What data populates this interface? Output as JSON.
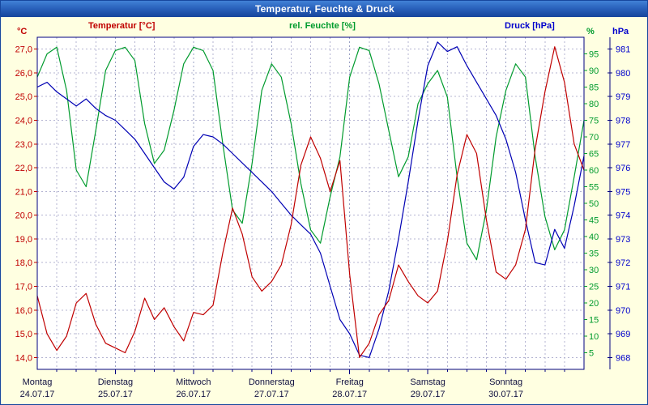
{
  "window": {
    "title": "Temperatur, Feuchte & Druck"
  },
  "legend": {
    "temperature": "Temperatur [°C]",
    "humidity": "rel. Feuchte [%]",
    "pressure": "Druck [hPa]"
  },
  "axes": {
    "temp_unit": "°C",
    "hum_unit": "%",
    "pres_unit": "hPa"
  },
  "colors": {
    "temperature": "#c00000",
    "humidity": "#009b2d",
    "pressure": "#0000b4",
    "pressure_label": "#0000cc",
    "grid": "#b4b4d2",
    "axis": "#000080",
    "day_label": "#101040",
    "background": "#ffffe1",
    "plot_background": "#ffffff"
  },
  "chart_data": {
    "type": "line",
    "title": "Temperatur, Feuchte & Druck",
    "x_unit": "hours",
    "x_start_hours": 0,
    "x_end_hours": 168,
    "x_step_hours": 3,
    "grid": {
      "v_step_hours": 6,
      "h_lines": "temperature-ticks",
      "style": "dashed"
    },
    "x_days": [
      {
        "name": "Montag",
        "date": "24.07.17"
      },
      {
        "name": "Dienstag",
        "date": "25.07.17"
      },
      {
        "name": "Mittwoch",
        "date": "26.07.17"
      },
      {
        "name": "Donnerstag",
        "date": "27.07.17"
      },
      {
        "name": "Freitag",
        "date": "28.07.17"
      },
      {
        "name": "Samstag",
        "date": "29.07.17"
      },
      {
        "name": "Sonntag",
        "date": "30.07.17"
      }
    ],
    "series": [
      {
        "name": "Temperatur",
        "unit": "°C",
        "color": "#c00000",
        "axis": {
          "side": "left",
          "min": 13.5,
          "max": 27.5,
          "tick_from": 14,
          "tick_to": 27,
          "tick_step": 1,
          "decimals": 1
        },
        "values": [
          16.6,
          15.0,
          14.3,
          14.9,
          16.3,
          16.7,
          15.4,
          14.6,
          14.4,
          14.2,
          15.1,
          16.5,
          15.6,
          16.1,
          15.3,
          14.7,
          15.9,
          15.8,
          16.2,
          18.4,
          20.3,
          19.2,
          17.4,
          16.8,
          17.2,
          17.9,
          19.6,
          22.1,
          23.3,
          22.4,
          21.0,
          22.3,
          17.5,
          14.0,
          14.6,
          15.8,
          16.4,
          17.9,
          17.2,
          16.6,
          16.3,
          16.8,
          18.9,
          21.7,
          23.4,
          22.6,
          19.8,
          17.6,
          17.3,
          17.9,
          19.4,
          22.8,
          25.2,
          27.1,
          25.6,
          23.0,
          21.9
        ]
      },
      {
        "name": "rel. Feuchte",
        "unit": "%",
        "color": "#009b2d",
        "axis": {
          "side": "right-inner",
          "min": 0,
          "max": 100,
          "tick_from": 5,
          "tick_to": 95,
          "tick_step": 5,
          "decimals": 0
        },
        "values": [
          88,
          95,
          97,
          84,
          60,
          55,
          72,
          90,
          96,
          97,
          93,
          74,
          62,
          66,
          78,
          92,
          97,
          96,
          90,
          68,
          48,
          44,
          62,
          84,
          92,
          88,
          74,
          56,
          42,
          38,
          52,
          64,
          88,
          97,
          96,
          86,
          72,
          58,
          64,
          80,
          86,
          90,
          82,
          58,
          38,
          33,
          48,
          70,
          84,
          92,
          88,
          64,
          46,
          36,
          42,
          58,
          75
        ]
      },
      {
        "name": "Druck",
        "unit": "hPa",
        "color": "#0000b4",
        "axis": {
          "side": "right-outer",
          "min": 967.5,
          "max": 981.5,
          "tick_from": 968,
          "tick_to": 981,
          "tick_step": 1,
          "decimals": 0
        },
        "values": [
          979.4,
          979.6,
          979.2,
          978.9,
          978.6,
          978.9,
          978.5,
          978.2,
          978.0,
          977.6,
          977.2,
          976.6,
          976.0,
          975.4,
          975.1,
          975.6,
          976.9,
          977.4,
          977.3,
          977.0,
          976.6,
          976.2,
          975.8,
          975.4,
          975.0,
          974.5,
          974.0,
          973.6,
          973.2,
          972.4,
          971.0,
          969.6,
          969.0,
          968.1,
          968.0,
          969.2,
          970.8,
          973.0,
          975.4,
          978.0,
          980.3,
          981.3,
          980.9,
          981.1,
          980.3,
          979.6,
          978.9,
          978.2,
          977.2,
          975.8,
          973.8,
          972.0,
          971.9,
          973.4,
          972.6,
          974.4,
          976.5
        ]
      }
    ]
  }
}
